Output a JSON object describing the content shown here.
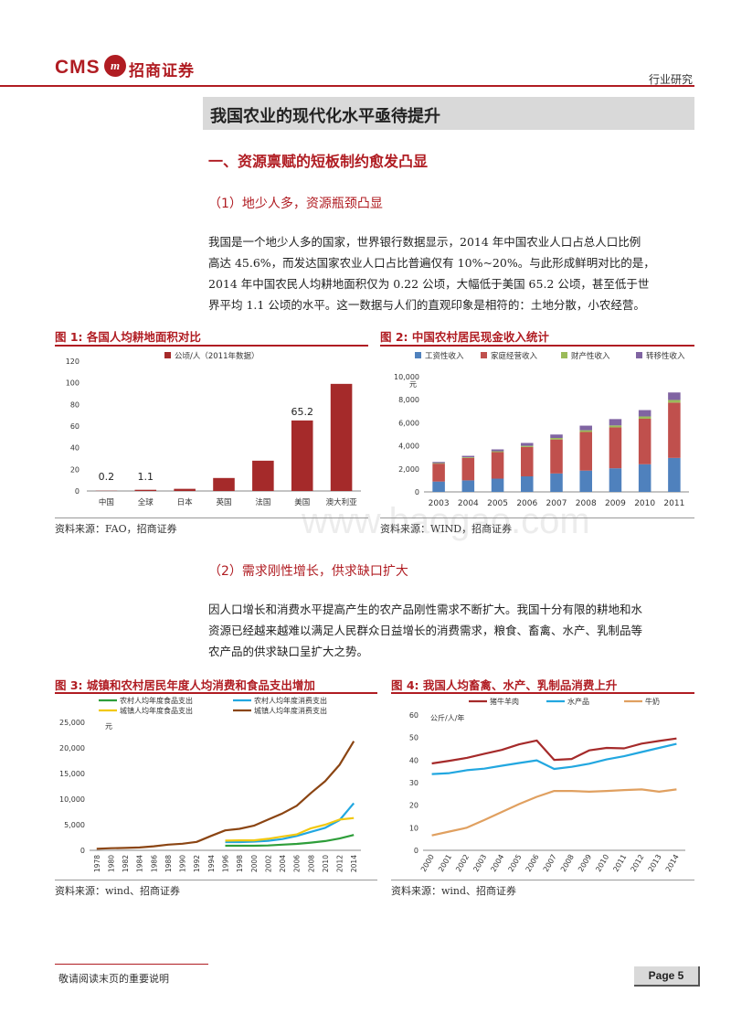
{
  "header": {
    "logo_cms": "CMS",
    "logo_mark": "m",
    "logo_cn": "招商证券",
    "report_type": "行业研究"
  },
  "section_title": "我国农业的现代化水平亟待提升",
  "heading1": "一、资源禀赋的短板制约愈发凸显",
  "sub1": {
    "title": "（1）地少人多，资源瓶颈凸显",
    "lines": [
      "我国是一个地少人多的国家，世界银行数据显示，2014 年中国农业人口占总人口比例",
      "高达 45.6%，而发达国家农业人口占比普遍仅有 10%~20%。与此形成鲜明对比的是，",
      "2014 年中国农民人均耕地面积仅为 0.22 公顷，大幅低于美国 65.2 公顷，甚至低于世",
      "界平均 1.1 公顷的水平。这一数据与人们的直观印象是相符的：土地分散，小农经营。"
    ]
  },
  "sub2": {
    "title": "（2）需求刚性增长，供求缺口扩大",
    "lines": [
      "因人口增长和消费水平提高产生的农产品刚性需求不断扩大。我国十分有限的耕地和水",
      "资源已经越来越难以满足人民群众日益增长的消费需求，粮食、畜禽、水产、乳制品等",
      "农产品的供求缺口呈扩大之势。"
    ]
  },
  "figures": {
    "fig1": {
      "title": "图 1:  各国人均耕地面积对比",
      "source": "资料来源：FAO，招商证券"
    },
    "fig2": {
      "title": "图 2:  中国农村居民现金收入统计",
      "source": "资料来源：WIND，招商证券"
    },
    "fig3": {
      "title": "图 3:  城镇和农村居民年度人均消费和食品支出增加",
      "source": "资料来源：wind、招商证券"
    },
    "fig4": {
      "title": "图 4:  我国人均畜禽、水产、乳制品消费上升",
      "source": "资料来源：wind、招商证券"
    }
  },
  "watermark": "www.baogao.com",
  "footer": {
    "disclaimer": "敬请阅读末页的重要说明",
    "page": "Page 5"
  },
  "chart_data": [
    {
      "id": "fig1",
      "type": "bar",
      "legend": "公顷/人（2011年数据）",
      "categories": [
        "中国",
        "全球",
        "日本",
        "英国",
        "法国",
        "美国",
        "澳大利亚"
      ],
      "values": [
        0.2,
        1.1,
        2,
        12,
        28,
        65.2,
        99
      ],
      "data_labels": [
        "0.2",
        "1.1",
        "",
        "",
        "",
        "65.2",
        ""
      ],
      "ylim": [
        0,
        120
      ],
      "yticks": [
        "0",
        "20",
        "40",
        "60",
        "80",
        "100",
        "120"
      ],
      "color": "#a52a2a"
    },
    {
      "id": "fig2",
      "type": "bar",
      "stacked": true,
      "unit": "元",
      "categories": [
        "2003",
        "2004",
        "2005",
        "2006",
        "2007",
        "2008",
        "2009",
        "2010",
        "2011"
      ],
      "series": [
        {
          "name": "工资性收入",
          "color": "#4f81bd",
          "values": [
            900,
            1000,
            1150,
            1350,
            1600,
            1850,
            2050,
            2400,
            2950
          ]
        },
        {
          "name": "家庭经营收入",
          "color": "#c0504d",
          "values": [
            1550,
            1950,
            2300,
            2550,
            2950,
            3350,
            3550,
            3950,
            4800
          ]
        },
        {
          "name": "财产性收入",
          "color": "#9bbb59",
          "values": [
            50,
            60,
            80,
            100,
            130,
            150,
            170,
            200,
            230
          ]
        },
        {
          "name": "转移性收入",
          "color": "#8064a2",
          "values": [
            100,
            120,
            160,
            250,
            300,
            400,
            550,
            550,
            650
          ]
        }
      ],
      "ylim": [
        0,
        10000
      ],
      "yticks": [
        "0",
        "2,000",
        "4,000",
        "6,000",
        "8,000",
        "10,000"
      ]
    },
    {
      "id": "fig3",
      "type": "line",
      "unit": "元",
      "x": [
        "1978",
        "1980",
        "1982",
        "1984",
        "1986",
        "1988",
        "1990",
        "1992",
        "1994",
        "1996",
        "1998",
        "2000",
        "2002",
        "2004",
        "2006",
        "2008",
        "2010",
        "2012",
        "2014"
      ],
      "series": [
        {
          "name": "农村人均年度食品支出",
          "color": "#2e9e3a",
          "values": [
            null,
            null,
            null,
            null,
            null,
            null,
            null,
            null,
            null,
            900,
            900,
            900,
            950,
            1100,
            1250,
            1500,
            1800,
            2300,
            3000
          ]
        },
        {
          "name": "农村人均年度消费支出",
          "color": "#22a7e0",
          "values": [
            null,
            null,
            null,
            null,
            null,
            null,
            null,
            null,
            null,
            1600,
            1600,
            1700,
            1850,
            2200,
            2800,
            3600,
            4400,
            5900,
            9200
          ]
        },
        {
          "name": "城镇人均年度食品支出",
          "color": "#f2c80f",
          "values": [
            null,
            null,
            null,
            null,
            null,
            null,
            null,
            null,
            null,
            1900,
            1950,
            1950,
            2250,
            2700,
            3100,
            4300,
            5000,
            6000,
            6300
          ]
        },
        {
          "name": "城镇人均年度消费支出",
          "color": "#8b4513",
          "values": [
            310,
            410,
            470,
            560,
            780,
            1100,
            1280,
            1650,
            2800,
            3900,
            4200,
            4800,
            6000,
            7200,
            8700,
            11200,
            13500,
            16700,
            21300
          ]
        }
      ],
      "ylim": [
        0,
        25000
      ],
      "yticks": [
        "0",
        "5,000",
        "10,000",
        "15,000",
        "20,000",
        "25,000"
      ]
    },
    {
      "id": "fig4",
      "type": "line",
      "unit": "公斤/人/年",
      "x": [
        "2000",
        "2001",
        "2002",
        "2003",
        "2004",
        "2005",
        "2006",
        "2007",
        "2008",
        "2009",
        "2010",
        "2011",
        "2012",
        "2013",
        "2014"
      ],
      "series": [
        {
          "name": "猪牛羊肉",
          "color": "#a52a2a",
          "values": [
            38.5,
            39.7,
            41,
            42.8,
            44.5,
            47,
            48.7,
            40.1,
            40.5,
            44.3,
            45.4,
            45.2,
            47.3,
            48.5,
            49.6
          ]
        },
        {
          "name": "水产品",
          "color": "#22a7e0",
          "values": [
            33.8,
            34.2,
            35.5,
            36.2,
            37.5,
            38.7,
            39.9,
            36.1,
            37,
            38.4,
            40.3,
            41.7,
            43.6,
            45.4,
            47.2
          ]
        },
        {
          "name": "牛奶",
          "color": "#e0a060",
          "values": [
            6.6,
            8.3,
            10,
            13.4,
            17,
            20.5,
            23.7,
            26.3,
            26.3,
            26,
            26.3,
            26.7,
            27,
            26,
            27
          ]
        }
      ],
      "ylim": [
        0,
        60
      ],
      "yticks": [
        "0",
        "10",
        "20",
        "30",
        "40",
        "50",
        "60"
      ]
    }
  ]
}
